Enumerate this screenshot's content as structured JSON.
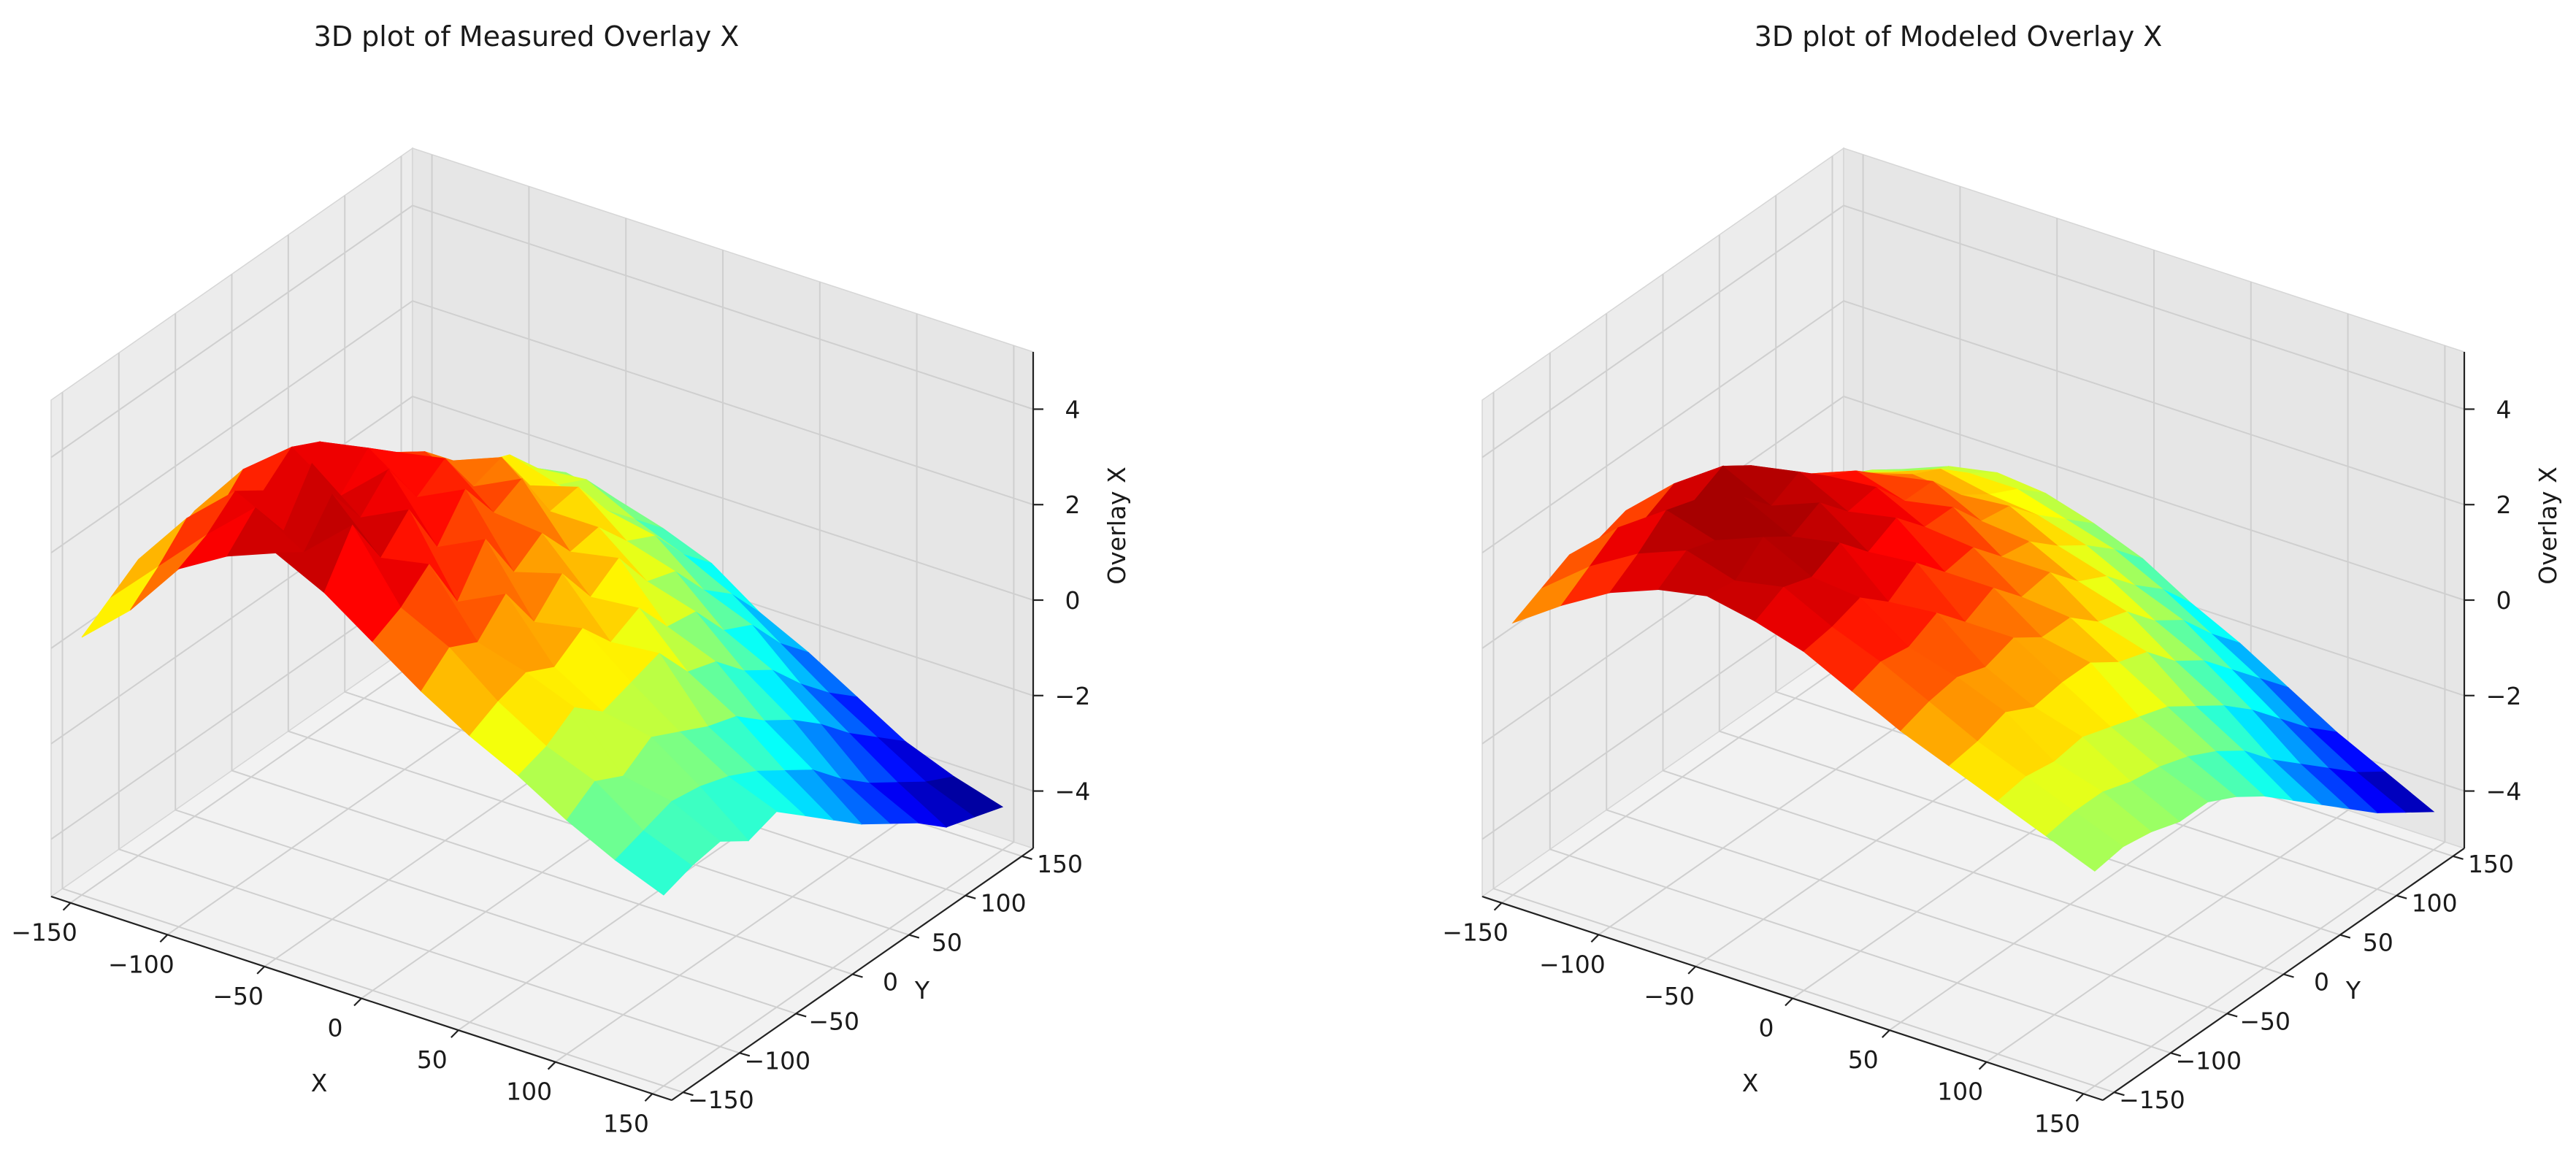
{
  "chart_data": [
    {
      "type": "surface3d",
      "title": "3D plot of Measured Overlay X",
      "xlabel": "X",
      "ylabel": "Y",
      "zlabel": "Overlay X",
      "xlim": [
        -160,
        160
      ],
      "ylim": [
        -160,
        160
      ],
      "zlim": [
        -5.2,
        5.2
      ],
      "x_ticks": [
        -150,
        -100,
        -50,
        0,
        50,
        100,
        150
      ],
      "y_ticks": [
        -150,
        -100,
        -50,
        0,
        50,
        100,
        150
      ],
      "z_ticks": [
        -4,
        -2,
        0,
        2,
        4
      ],
      "x_tick_labels": [
        "−150",
        "−100",
        "−50",
        "0",
        "50",
        "100",
        "150"
      ],
      "y_tick_labels": [
        "−150",
        "−100",
        "−50",
        "0",
        "50",
        "100",
        "150"
      ],
      "z_tick_labels": [
        "−4",
        "−2",
        "0",
        "2",
        "4"
      ],
      "colormap": "jet",
      "grid": true,
      "surface": {
        "x": [
          -150,
          -125,
          -100,
          -75,
          -50,
          -25,
          0,
          25,
          50,
          75,
          100,
          125,
          150
        ],
        "y": [
          -150,
          -125,
          -100,
          -75,
          -50,
          -25,
          0,
          25,
          50,
          75,
          100,
          125,
          150
        ],
        "z": [
          [
            0.2,
            1.1,
            2.3,
            2.9,
            3.3,
            2.8,
            2.1,
            1.4,
            0.8,
            0.3,
            -0.3,
            -0.8,
            -1.2
          ],
          [
            0.6,
            1.6,
            2.6,
            3.5,
            2.9,
            3.8,
            2.4,
            1.9,
            1.1,
            0.5,
            0.1,
            -0.6,
            -1.0
          ],
          [
            1.0,
            2.2,
            3.1,
            2.6,
            3.7,
            2.7,
            2.9,
            1.6,
            1.3,
            0.9,
            -0.2,
            -0.4,
            -0.9
          ],
          [
            0.9,
            1.8,
            2.7,
            3.6,
            2.8,
            3.3,
            1.7,
            2.2,
            1.0,
            0.4,
            0.2,
            -0.5,
            -1.3
          ],
          [
            1.2,
            2.4,
            3.2,
            2.5,
            3.4,
            2.1,
            2.6,
            1.2,
            1.4,
            0.6,
            -0.1,
            -0.7,
            -1.1
          ],
          [
            0.7,
            1.5,
            2.9,
            3.1,
            2.4,
            2.9,
            1.5,
            1.8,
            0.7,
            0.8,
            -0.4,
            -1.0,
            -1.6
          ],
          [
            0.3,
            1.3,
            2.0,
            2.6,
            2.8,
            2.0,
            1.9,
            0.9,
            1.0,
            0.0,
            -0.6,
            -1.4,
            -2.1
          ],
          [
            0.0,
            0.9,
            1.7,
            2.2,
            1.8,
            2.3,
            1.1,
            1.3,
            0.2,
            -0.2,
            -1.1,
            -1.8,
            -2.6
          ],
          [
            -0.3,
            0.5,
            1.2,
            1.6,
            2.0,
            1.2,
            1.2,
            0.4,
            0.1,
            -0.8,
            -1.5,
            -2.4,
            -3.0
          ],
          [
            -0.6,
            0.1,
            0.8,
            1.1,
            1.0,
            1.3,
            0.5,
            0.2,
            -0.7,
            -1.2,
            -2.0,
            -2.9,
            -3.4
          ],
          [
            -0.9,
            -0.3,
            0.3,
            0.9,
            0.6,
            0.4,
            0.2,
            -0.6,
            -1.0,
            -1.9,
            -2.6,
            -3.3,
            -3.9
          ],
          [
            -1.2,
            -0.7,
            -0.1,
            0.2,
            0.3,
            -0.2,
            -0.6,
            -1.1,
            -1.8,
            -2.5,
            -3.1,
            -3.7,
            -4.1
          ],
          [
            -1.5,
            -1.0,
            -0.6,
            -0.3,
            -0.5,
            -0.8,
            -1.2,
            -1.9,
            -2.4,
            -3.0,
            -3.6,
            -4.0,
            -4.3
          ]
        ]
      }
    },
    {
      "type": "surface3d",
      "title": "3D plot of Modeled Overlay X",
      "xlabel": "X",
      "ylabel": "Y",
      "zlabel": "Overlay X",
      "xlim": [
        -160,
        160
      ],
      "ylim": [
        -160,
        160
      ],
      "zlim": [
        -5.2,
        5.2
      ],
      "x_ticks": [
        -150,
        -100,
        -50,
        0,
        50,
        100,
        150
      ],
      "y_ticks": [
        -150,
        -100,
        -50,
        0,
        50,
        100,
        150
      ],
      "z_ticks": [
        -4,
        -2,
        0,
        2,
        4
      ],
      "x_tick_labels": [
        "−150",
        "−100",
        "−50",
        "0",
        "50",
        "100",
        "150"
      ],
      "y_tick_labels": [
        "−150",
        "−100",
        "−50",
        "0",
        "50",
        "100",
        "150"
      ],
      "z_tick_labels": [
        "−4",
        "−2",
        "0",
        "2",
        "4"
      ],
      "colormap": "jet",
      "grid": true,
      "surface": {
        "x": [
          -150,
          -125,
          -100,
          -75,
          -50,
          -25,
          0,
          25,
          50,
          75,
          100,
          125,
          150
        ],
        "y": [
          -150,
          -125,
          -100,
          -75,
          -50,
          -25,
          0,
          25,
          50,
          75,
          100,
          125,
          150
        ],
        "z": [
          [
            0.5,
            1.2,
            1.8,
            2.2,
            2.4,
            2.2,
            1.9,
            1.4,
            0.9,
            0.5,
            0.1,
            -0.3,
            -0.7
          ],
          [
            0.8,
            1.6,
            2.2,
            2.6,
            2.3,
            2.5,
            2.0,
            1.6,
            1.1,
            0.6,
            0.2,
            -0.2,
            -0.6
          ],
          [
            1.1,
            2.0,
            2.7,
            2.4,
            2.8,
            2.3,
            2.2,
            1.5,
            1.2,
            0.8,
            0.1,
            -0.2,
            -0.7
          ],
          [
            1.0,
            1.8,
            2.5,
            2.9,
            2.4,
            2.6,
            1.7,
            1.8,
            1.0,
            0.5,
            0.2,
            -0.4,
            -0.9
          ],
          [
            1.2,
            2.1,
            2.8,
            2.3,
            2.7,
            2.0,
            2.1,
            1.2,
            1.2,
            0.6,
            0.0,
            -0.5,
            -0.9
          ],
          [
            0.8,
            1.5,
            2.4,
            2.6,
            2.1,
            2.3,
            1.5,
            1.5,
            0.8,
            0.6,
            -0.2,
            -0.7,
            -1.2
          ],
          [
            0.5,
            1.2,
            1.8,
            2.1,
            2.2,
            1.7,
            1.6,
            0.9,
            0.8,
            0.2,
            -0.4,
            -1.0,
            -1.6
          ],
          [
            0.2,
            0.9,
            1.4,
            1.8,
            1.5,
            1.7,
            1.0,
            1.0,
            0.3,
            0.0,
            -0.8,
            -1.4,
            -2.1
          ],
          [
            -0.1,
            0.5,
            1.0,
            1.3,
            1.5,
            1.0,
            0.9,
            0.4,
            0.1,
            -0.6,
            -1.2,
            -2.0,
            -2.6
          ],
          [
            -0.4,
            0.2,
            0.6,
            0.9,
            0.8,
            0.9,
            0.4,
            0.1,
            -0.5,
            -1.0,
            -1.7,
            -2.5,
            -3.1
          ],
          [
            -0.7,
            -0.2,
            0.2,
            0.6,
            0.4,
            0.3,
            0.0,
            -0.5,
            -0.9,
            -1.6,
            -2.3,
            -3.0,
            -3.6
          ],
          [
            -1.0,
            -0.5,
            -0.2,
            0.1,
            0.1,
            -0.2,
            -0.5,
            -1.0,
            -1.6,
            -2.2,
            -2.9,
            -3.5,
            -4.0
          ],
          [
            -1.3,
            -0.9,
            -0.5,
            -0.3,
            -0.4,
            -0.7,
            -1.1,
            -1.7,
            -2.2,
            -2.8,
            -3.4,
            -3.9,
            -4.4
          ]
        ]
      }
    }
  ]
}
